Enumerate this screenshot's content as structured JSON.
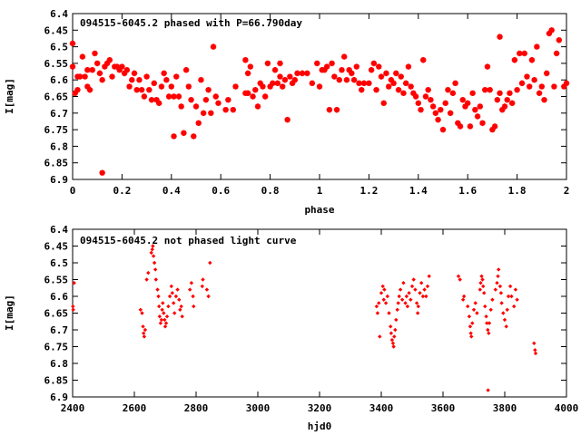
{
  "chart_data": [
    {
      "type": "scatter",
      "title": "094515-6045.2 phased with P=66.790day",
      "xlabel": "phase",
      "ylabel": "I[mag]",
      "xlim": [
        0,
        2
      ],
      "ylim": [
        6.9,
        6.4
      ],
      "y_inverted": true,
      "grid": false,
      "marker_color": "#ff0000",
      "xticks": [
        "0",
        "0.2",
        "0.4",
        "0.6",
        "0.8",
        "1",
        "1.2",
        "1.4",
        "1.6",
        "1.8",
        "2"
      ],
      "yticks": [
        "6.4",
        "6.45",
        "6.5",
        "6.55",
        "6.6",
        "6.65",
        "6.7",
        "6.75",
        "6.8",
        "6.85",
        "6.9"
      ],
      "points": [
        [
          0.0,
          6.49
        ],
        [
          0.0,
          6.56
        ],
        [
          0.01,
          6.64
        ],
        [
          0.02,
          6.63
        ],
        [
          0.02,
          6.59
        ],
        [
          0.03,
          6.59
        ],
        [
          0.04,
          6.53
        ],
        [
          0.05,
          6.59
        ],
        [
          0.06,
          6.62
        ],
        [
          0.06,
          6.57
        ],
        [
          0.07,
          6.63
        ],
        [
          0.08,
          6.57
        ],
        [
          0.09,
          6.52
        ],
        [
          0.1,
          6.55
        ],
        [
          0.11,
          6.58
        ],
        [
          0.12,
          6.6
        ],
        [
          0.12,
          6.88
        ],
        [
          0.13,
          6.56
        ],
        [
          0.14,
          6.55
        ],
        [
          0.15,
          6.54
        ],
        [
          0.16,
          6.59
        ],
        [
          0.17,
          6.56
        ],
        [
          0.18,
          6.56
        ],
        [
          0.19,
          6.57
        ],
        [
          0.2,
          6.56
        ],
        [
          0.21,
          6.58
        ],
        [
          0.22,
          6.57
        ],
        [
          0.23,
          6.62
        ],
        [
          0.24,
          6.6
        ],
        [
          0.25,
          6.58
        ],
        [
          0.26,
          6.63
        ],
        [
          0.27,
          6.6
        ],
        [
          0.28,
          6.63
        ],
        [
          0.29,
          6.65
        ],
        [
          0.3,
          6.59
        ],
        [
          0.31,
          6.63
        ],
        [
          0.32,
          6.66
        ],
        [
          0.33,
          6.61
        ],
        [
          0.34,
          6.66
        ],
        [
          0.35,
          6.67
        ],
        [
          0.36,
          6.62
        ],
        [
          0.37,
          6.58
        ],
        [
          0.38,
          6.6
        ],
        [
          0.39,
          6.65
        ],
        [
          0.4,
          6.62
        ],
        [
          0.41,
          6.65
        ],
        [
          0.41,
          6.77
        ],
        [
          0.42,
          6.59
        ],
        [
          0.43,
          6.65
        ],
        [
          0.44,
          6.68
        ],
        [
          0.45,
          6.76
        ],
        [
          0.46,
          6.57
        ],
        [
          0.47,
          6.62
        ],
        [
          0.48,
          6.66
        ],
        [
          0.49,
          6.77
        ],
        [
          0.5,
          6.68
        ],
        [
          0.51,
          6.73
        ],
        [
          0.52,
          6.6
        ],
        [
          0.53,
          6.7
        ],
        [
          0.54,
          6.66
        ],
        [
          0.55,
          6.63
        ],
        [
          0.56,
          6.7
        ],
        [
          0.57,
          6.5
        ],
        [
          0.58,
          6.65
        ],
        [
          0.59,
          6.67
        ],
        [
          0.62,
          6.69
        ],
        [
          0.63,
          6.66
        ],
        [
          0.65,
          6.69
        ],
        [
          0.66,
          6.62
        ],
        [
          0.7,
          6.54
        ],
        [
          0.7,
          6.64
        ],
        [
          0.71,
          6.64
        ],
        [
          0.71,
          6.58
        ],
        [
          0.72,
          6.56
        ],
        [
          0.73,
          6.65
        ],
        [
          0.74,
          6.63
        ],
        [
          0.75,
          6.68
        ],
        [
          0.76,
          6.61
        ],
        [
          0.77,
          6.62
        ],
        [
          0.78,
          6.65
        ],
        [
          0.79,
          6.55
        ],
        [
          0.8,
          6.62
        ],
        [
          0.81,
          6.61
        ],
        [
          0.82,
          6.57
        ],
        [
          0.83,
          6.61
        ],
        [
          0.84,
          6.59
        ],
        [
          0.84,
          6.55
        ],
        [
          0.85,
          6.62
        ],
        [
          0.86,
          6.6
        ],
        [
          0.87,
          6.72
        ],
        [
          0.88,
          6.59
        ],
        [
          0.89,
          6.61
        ],
        [
          0.9,
          6.6
        ],
        [
          0.91,
          6.58
        ],
        [
          0.93,
          6.58
        ],
        [
          0.95,
          6.58
        ],
        [
          0.97,
          6.61
        ],
        [
          0.99,
          6.55
        ],
        [
          1.0,
          6.62
        ],
        [
          1.01,
          6.57
        ],
        [
          1.02,
          6.57
        ],
        [
          1.03,
          6.56
        ],
        [
          1.04,
          6.69
        ],
        [
          1.05,
          6.55
        ],
        [
          1.06,
          6.59
        ],
        [
          1.07,
          6.69
        ],
        [
          1.08,
          6.6
        ],
        [
          1.09,
          6.57
        ],
        [
          1.1,
          6.53
        ],
        [
          1.11,
          6.6
        ],
        [
          1.12,
          6.57
        ],
        [
          1.13,
          6.58
        ],
        [
          1.14,
          6.6
        ],
        [
          1.15,
          6.56
        ],
        [
          1.16,
          6.61
        ],
        [
          1.17,
          6.63
        ],
        [
          1.18,
          6.61
        ],
        [
          1.2,
          6.61
        ],
        [
          1.21,
          6.57
        ],
        [
          1.22,
          6.55
        ],
        [
          1.23,
          6.63
        ],
        [
          1.24,
          6.56
        ],
        [
          1.25,
          6.59
        ],
        [
          1.26,
          6.67
        ],
        [
          1.27,
          6.58
        ],
        [
          1.28,
          6.62
        ],
        [
          1.29,
          6.6
        ],
        [
          1.3,
          6.61
        ],
        [
          1.31,
          6.58
        ],
        [
          1.32,
          6.63
        ],
        [
          1.33,
          6.59
        ],
        [
          1.34,
          6.64
        ],
        [
          1.35,
          6.61
        ],
        [
          1.36,
          6.56
        ],
        [
          1.37,
          6.62
        ],
        [
          1.38,
          6.64
        ],
        [
          1.39,
          6.65
        ],
        [
          1.4,
          6.67
        ],
        [
          1.41,
          6.69
        ],
        [
          1.42,
          6.54
        ],
        [
          1.43,
          6.65
        ],
        [
          1.44,
          6.63
        ],
        [
          1.45,
          6.66
        ],
        [
          1.46,
          6.68
        ],
        [
          1.47,
          6.7
        ],
        [
          1.48,
          6.72
        ],
        [
          1.49,
          6.69
        ],
        [
          1.5,
          6.75
        ],
        [
          1.51,
          6.67
        ],
        [
          1.52,
          6.63
        ],
        [
          1.53,
          6.7
        ],
        [
          1.54,
          6.64
        ],
        [
          1.55,
          6.61
        ],
        [
          1.56,
          6.73
        ],
        [
          1.57,
          6.74
        ],
        [
          1.58,
          6.66
        ],
        [
          1.59,
          6.68
        ],
        [
          1.6,
          6.67
        ],
        [
          1.61,
          6.74
        ],
        [
          1.62,
          6.64
        ],
        [
          1.63,
          6.69
        ],
        [
          1.64,
          6.71
        ],
        [
          1.65,
          6.68
        ],
        [
          1.66,
          6.73
        ],
        [
          1.67,
          6.63
        ],
        [
          1.68,
          6.56
        ],
        [
          1.69,
          6.63
        ],
        [
          1.7,
          6.75
        ],
        [
          1.71,
          6.74
        ],
        [
          1.72,
          6.66
        ],
        [
          1.73,
          6.47
        ],
        [
          1.73,
          6.64
        ],
        [
          1.74,
          6.69
        ],
        [
          1.75,
          6.68
        ],
        [
          1.76,
          6.66
        ],
        [
          1.77,
          6.64
        ],
        [
          1.78,
          6.67
        ],
        [
          1.79,
          6.54
        ],
        [
          1.8,
          6.63
        ],
        [
          1.81,
          6.52
        ],
        [
          1.82,
          6.61
        ],
        [
          1.83,
          6.52
        ],
        [
          1.84,
          6.59
        ],
        [
          1.85,
          6.62
        ],
        [
          1.86,
          6.54
        ],
        [
          1.87,
          6.6
        ],
        [
          1.88,
          6.5
        ],
        [
          1.89,
          6.64
        ],
        [
          1.9,
          6.62
        ],
        [
          1.91,
          6.66
        ],
        [
          1.92,
          6.58
        ],
        [
          1.93,
          6.46
        ],
        [
          1.94,
          6.45
        ],
        [
          1.95,
          6.62
        ],
        [
          1.96,
          6.52
        ],
        [
          1.97,
          6.48
        ],
        [
          1.99,
          6.62
        ],
        [
          2.0,
          6.61
        ]
      ]
    },
    {
      "type": "scatter",
      "title": "094515-6045.2 not phased light curve",
      "xlabel": "hjd0",
      "ylabel": "I[mag]",
      "xlim": [
        2400,
        4000
      ],
      "ylim": [
        6.9,
        6.4
      ],
      "y_inverted": true,
      "grid": false,
      "marker_color": "#ff0000",
      "xticks": [
        "2400",
        "2600",
        "2800",
        "3000",
        "3200",
        "3400",
        "3600",
        "3800",
        "4000"
      ],
      "yticks": [
        "6.4",
        "6.45",
        "6.5",
        "6.55",
        "6.6",
        "6.65",
        "6.7",
        "6.75",
        "6.8",
        "6.85",
        "6.9"
      ],
      "points": [
        [
          2401,
          6.63
        ],
        [
          2402,
          6.64
        ],
        [
          2405,
          6.56
        ],
        [
          2620,
          6.64
        ],
        [
          2625,
          6.65
        ],
        [
          2628,
          6.69
        ],
        [
          2630,
          6.71
        ],
        [
          2632,
          6.72
        ],
        [
          2635,
          6.7
        ],
        [
          2640,
          6.55
        ],
        [
          2645,
          6.53
        ],
        [
          2655,
          6.47
        ],
        [
          2658,
          6.46
        ],
        [
          2660,
          6.45
        ],
        [
          2662,
          6.48
        ],
        [
          2665,
          6.5
        ],
        [
          2668,
          6.52
        ],
        [
          2670,
          6.55
        ],
        [
          2675,
          6.58
        ],
        [
          2678,
          6.6
        ],
        [
          2680,
          6.63
        ],
        [
          2682,
          6.66
        ],
        [
          2685,
          6.68
        ],
        [
          2688,
          6.67
        ],
        [
          2690,
          6.64
        ],
        [
          2692,
          6.62
        ],
        [
          2695,
          6.65
        ],
        [
          2698,
          6.67
        ],
        [
          2700,
          6.69
        ],
        [
          2703,
          6.68
        ],
        [
          2706,
          6.66
        ],
        [
          2710,
          6.63
        ],
        [
          2715,
          6.6
        ],
        [
          2720,
          6.57
        ],
        [
          2723,
          6.59
        ],
        [
          2727,
          6.62
        ],
        [
          2730,
          6.65
        ],
        [
          2735,
          6.6
        ],
        [
          2740,
          6.58
        ],
        [
          2745,
          6.61
        ],
        [
          2748,
          6.64
        ],
        [
          2752,
          6.63
        ],
        [
          2755,
          6.66
        ],
        [
          2780,
          6.58
        ],
        [
          2785,
          6.56
        ],
        [
          2790,
          6.6
        ],
        [
          2792,
          6.63
        ],
        [
          2820,
          6.57
        ],
        [
          2822,
          6.55
        ],
        [
          2835,
          6.58
        ],
        [
          2840,
          6.6
        ],
        [
          2845,
          6.5
        ],
        [
          3385,
          6.63
        ],
        [
          3388,
          6.65
        ],
        [
          3392,
          6.62
        ],
        [
          3395,
          6.72
        ],
        [
          3400,
          6.59
        ],
        [
          3405,
          6.57
        ],
        [
          3408,
          6.61
        ],
        [
          3410,
          6.58
        ],
        [
          3415,
          6.62
        ],
        [
          3420,
          6.6
        ],
        [
          3425,
          6.65
        ],
        [
          3430,
          6.69
        ],
        [
          3432,
          6.71
        ],
        [
          3435,
          6.73
        ],
        [
          3438,
          6.74
        ],
        [
          3440,
          6.75
        ],
        [
          3442,
          6.72
        ],
        [
          3445,
          6.7
        ],
        [
          3448,
          6.67
        ],
        [
          3452,
          6.64
        ],
        [
          3455,
          6.62
        ],
        [
          3458,
          6.6
        ],
        [
          3462,
          6.58
        ],
        [
          3468,
          6.61
        ],
        [
          3472,
          6.56
        ],
        [
          3478,
          6.62
        ],
        [
          3482,
          6.6
        ],
        [
          3485,
          6.63
        ],
        [
          3490,
          6.59
        ],
        [
          3495,
          6.61
        ],
        [
          3500,
          6.57
        ],
        [
          3505,
          6.55
        ],
        [
          3510,
          6.58
        ],
        [
          3515,
          6.62
        ],
        [
          3518,
          6.65
        ],
        [
          3520,
          6.63
        ],
        [
          3525,
          6.59
        ],
        [
          3530,
          6.56
        ],
        [
          3535,
          6.6
        ],
        [
          3540,
          6.58
        ],
        [
          3545,
          6.6
        ],
        [
          3550,
          6.57
        ],
        [
          3555,
          6.54
        ],
        [
          3650,
          6.54
        ],
        [
          3655,
          6.55
        ],
        [
          3665,
          6.61
        ],
        [
          3668,
          6.6
        ],
        [
          3680,
          6.63
        ],
        [
          3685,
          6.66
        ],
        [
          3688,
          6.69
        ],
        [
          3690,
          6.71
        ],
        [
          3692,
          6.72
        ],
        [
          3695,
          6.68
        ],
        [
          3700,
          6.64
        ],
        [
          3705,
          6.62
        ],
        [
          3710,
          6.65
        ],
        [
          3720,
          6.58
        ],
        [
          3722,
          6.56
        ],
        [
          3725,
          6.54
        ],
        [
          3728,
          6.55
        ],
        [
          3730,
          6.57
        ],
        [
          3733,
          6.59
        ],
        [
          3736,
          6.63
        ],
        [
          3740,
          6.66
        ],
        [
          3742,
          6.68
        ],
        [
          3745,
          6.7
        ],
        [
          3748,
          6.71
        ],
        [
          3750,
          6.68
        ],
        [
          3746,
          6.88
        ],
        [
          3755,
          6.64
        ],
        [
          3760,
          6.61
        ],
        [
          3770,
          6.58
        ],
        [
          3775,
          6.56
        ],
        [
          3778,
          6.54
        ],
        [
          3780,
          6.52
        ],
        [
          3785,
          6.57
        ],
        [
          3788,
          6.59
        ],
        [
          3790,
          6.62
        ],
        [
          3795,
          6.65
        ],
        [
          3800,
          6.67
        ],
        [
          3805,
          6.69
        ],
        [
          3808,
          6.64
        ],
        [
          3812,
          6.6
        ],
        [
          3818,
          6.57
        ],
        [
          3822,
          6.6
        ],
        [
          3830,
          6.63
        ],
        [
          3835,
          6.58
        ],
        [
          3840,
          6.61
        ],
        [
          3895,
          6.74
        ],
        [
          3898,
          6.76
        ],
        [
          3900,
          6.77
        ]
      ]
    }
  ]
}
